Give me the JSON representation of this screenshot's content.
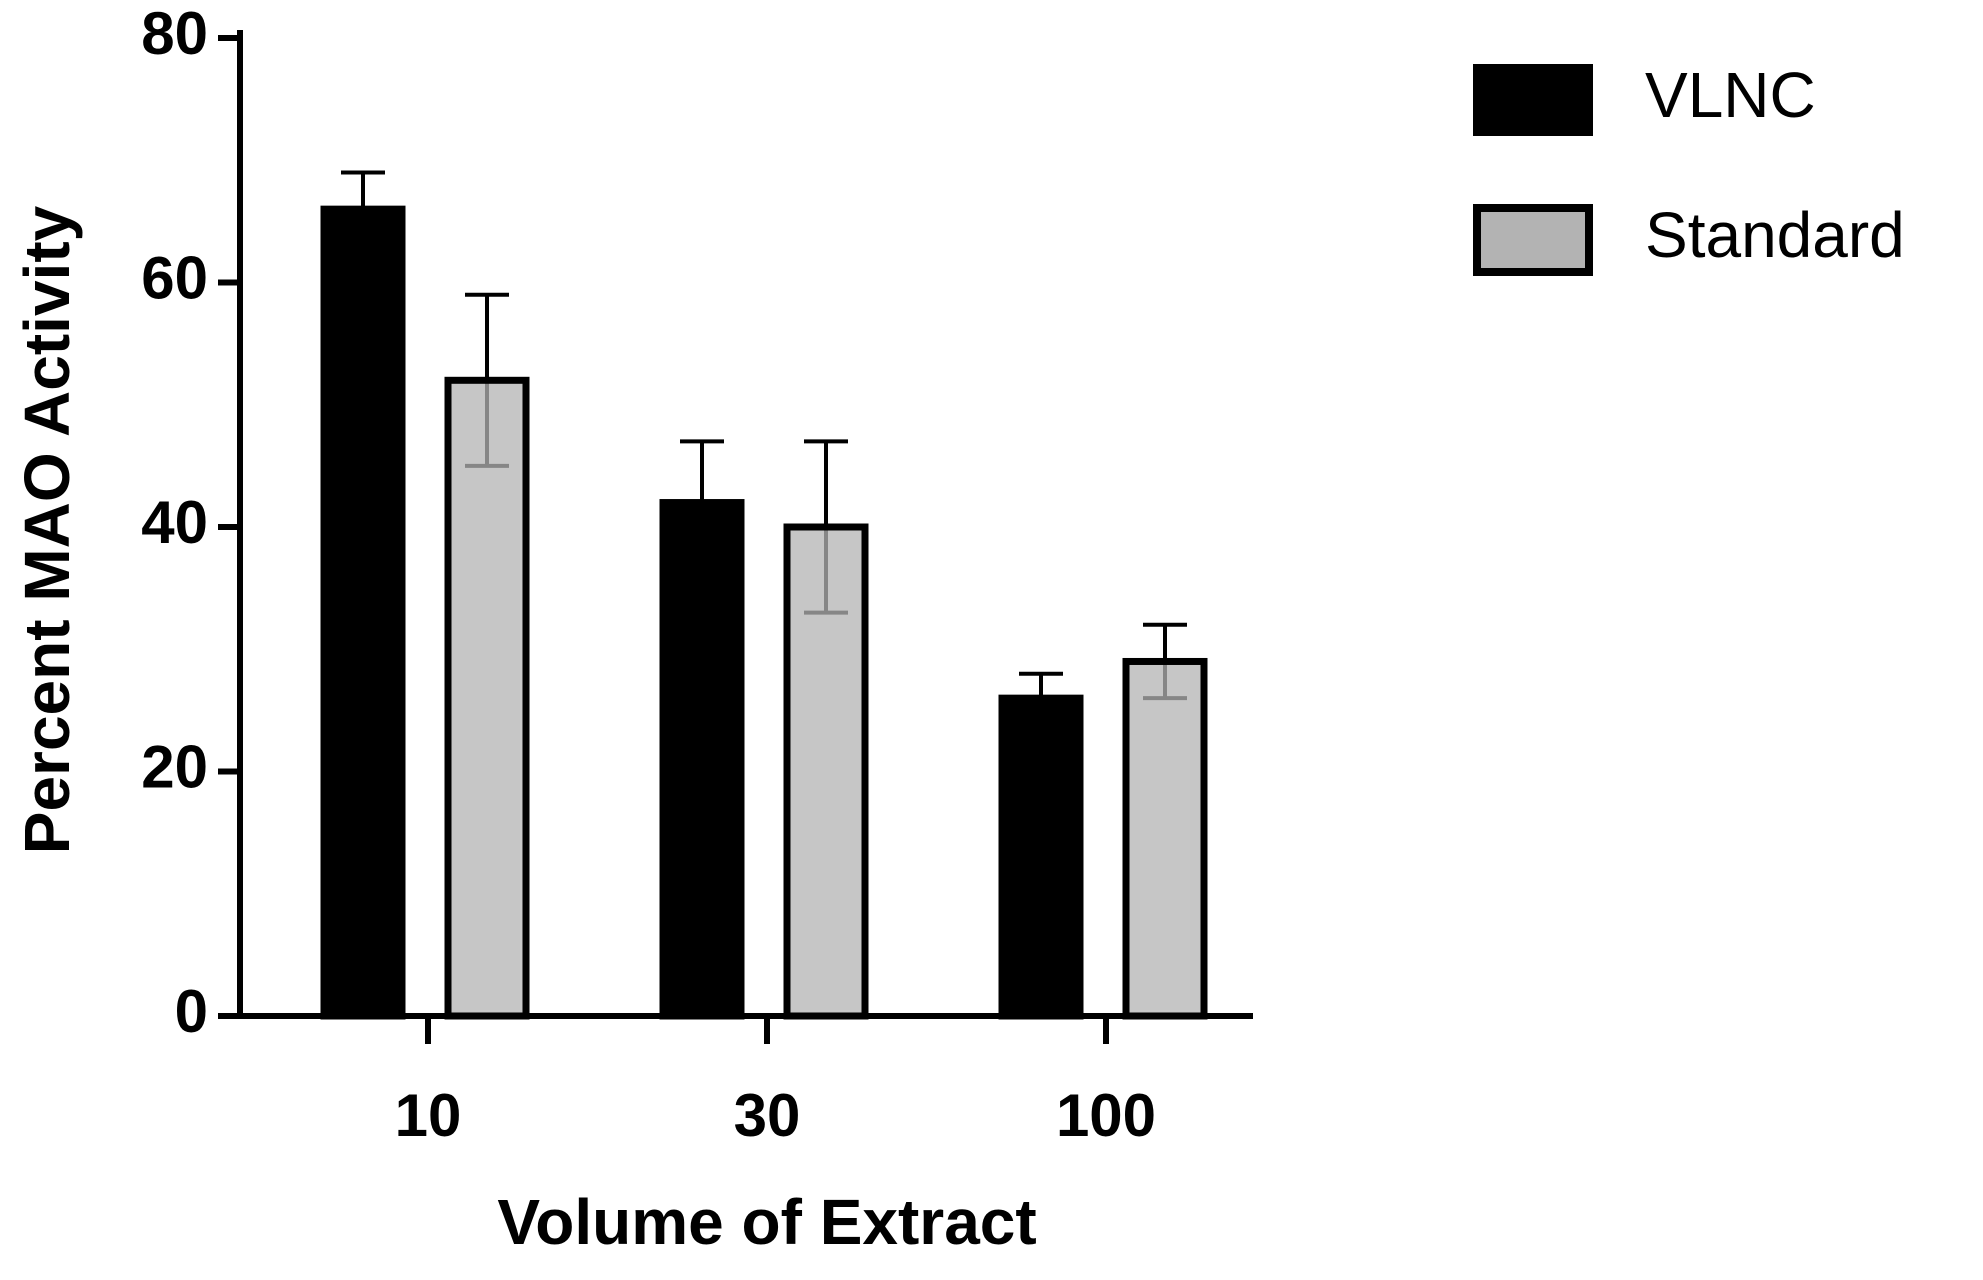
{
  "chart_data": {
    "type": "bar",
    "x_label": "Volume of Extract",
    "y_label": "Percent MAO Activity",
    "categories": [
      "10",
      "30",
      "100"
    ],
    "series": [
      {
        "name": "VLNC",
        "color": "#000000",
        "values": [
          66,
          42,
          26
        ],
        "errors": [
          3,
          5,
          2
        ]
      },
      {
        "name": "Standard",
        "color": "#b3b3b3",
        "values": [
          52,
          40,
          29
        ],
        "errors": [
          7,
          7,
          3
        ]
      }
    ],
    "ylim": [
      0,
      80
    ],
    "yticks": [
      0,
      20,
      40,
      60,
      80
    ],
    "legend": "upper right"
  }
}
